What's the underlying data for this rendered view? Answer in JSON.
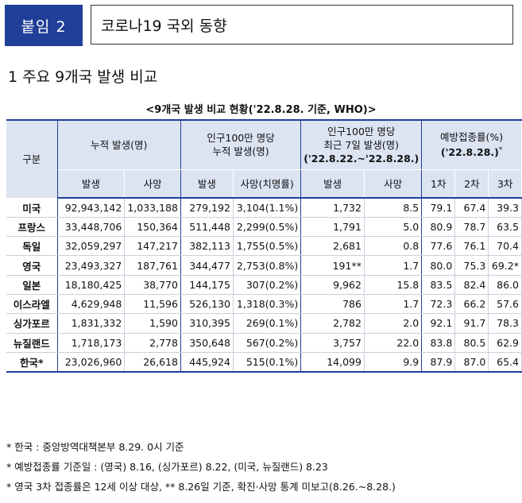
{
  "header": {
    "badge": "붙임 2",
    "title": "코로나19 국외 동향"
  },
  "section_title": "1  주요 9개국 발생 비교",
  "table": {
    "caption": "<9개국 발생 비교 현황('22.8.28. 기준, WHO)>",
    "headers": {
      "division": "구분",
      "cumulative": "누적 발생(명)",
      "per_million_line1": "인구100만 명당",
      "per_million_line2": "누적 발생(명)",
      "recent_line1": "인구100만 명당",
      "recent_line2": "최근 7일 발생(명)",
      "recent_line3": "('22.8.22.~'22.8.28.)",
      "vacc_line1": "예방접종률(%)",
      "vacc_line2": "('22.8.28.)",
      "vacc_mark": "*",
      "sub": [
        "발생",
        "사망",
        "발생",
        "사망(치명률)",
        "발생",
        "사망",
        "1차",
        "2차",
        "3차"
      ]
    },
    "rows": [
      {
        "country": "미국",
        "cells": [
          "92,943,142",
          "1,033,188",
          "279,192",
          "3,104(1.1%)",
          "1,732",
          "8.5",
          "79.1",
          "67.4",
          "39.3"
        ]
      },
      {
        "country": "프랑스",
        "cells": [
          "33,448,706",
          "150,364",
          "511,448",
          "2,299(0.5%)",
          "1,791",
          "5.0",
          "80.9",
          "78.7",
          "63.5"
        ]
      },
      {
        "country": "독일",
        "cells": [
          "32,059,297",
          "147,217",
          "382,113",
          "1,755(0.5%)",
          "2,681",
          "0.8",
          "77.6",
          "76.1",
          "70.4"
        ]
      },
      {
        "country": "영국",
        "cells": [
          "23,493,327",
          "187,761",
          "344,477",
          "2,753(0.8%)",
          "191**",
          "1.7",
          "80.0",
          "75.3",
          "69.2*"
        ]
      },
      {
        "country": "일본",
        "cells": [
          "18,180,425",
          "38,770",
          "144,175",
          "307(0.2%)",
          "9,962",
          "15.8",
          "83.5",
          "82.4",
          "86.0"
        ]
      },
      {
        "country": "이스라엘",
        "cells": [
          "4,629,948",
          "11,596",
          "526,130",
          "1,318(0.3%)",
          "786",
          "1.7",
          "72.3",
          "66.2",
          "57.6"
        ]
      },
      {
        "country": "싱가포르",
        "cells": [
          "1,831,332",
          "1,590",
          "310,395",
          "269(0.1%)",
          "2,782",
          "2.0",
          "92.1",
          "91.7",
          "78.3"
        ]
      },
      {
        "country": "뉴질랜드",
        "cells": [
          "1,718,173",
          "2,778",
          "350,648",
          "567(0.2%)",
          "3,757",
          "22.0",
          "83.8",
          "80.5",
          "62.9"
        ]
      },
      {
        "country": "한국*",
        "cells": [
          "23,026,960",
          "26,618",
          "445,924",
          "515(0.1%)",
          "14,099",
          "9.9",
          "87.9",
          "87.0",
          "65.4"
        ]
      }
    ]
  },
  "notes": [
    "* 한국 : 중앙방역대책본부 8.29. 0시 기준",
    "* 예방접종률 기준일 : (영국) 8.16, (싱가포르) 8.22, (미국, 뉴질랜드) 8.23",
    "* 영국 3차 접종률은 12세 이상 대상, ** 8.26일 기준, 확진·사망 통계 미보고(8.26.~8.28.)"
  ]
}
